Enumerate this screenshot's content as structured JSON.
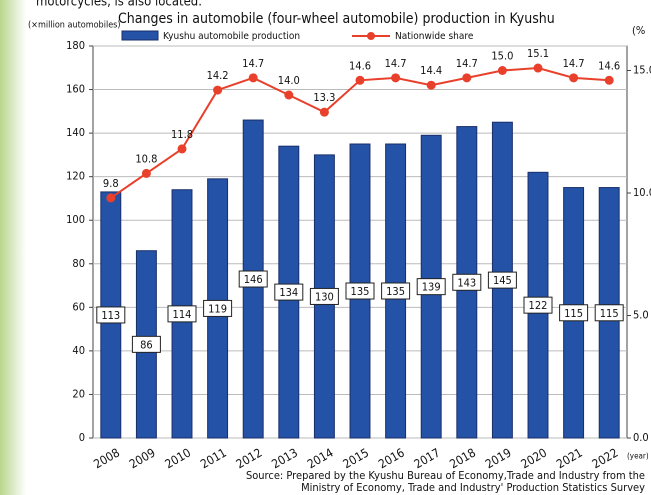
{
  "context_text": "motorcycles, is also located.",
  "chart_data": {
    "type": "bar_line",
    "title": "Changes in automobile (four-wheel automobile) production in Kyushu",
    "y_label": "(×million automobiles)",
    "y2_label": "(%",
    "x_label": "(year)",
    "source": [
      "Source: Prepared by the Kyushu Bureau of Economy,Trade and Industry from the",
      "Ministry of Economy, Trade and Industry' Production Statistics Survey"
    ],
    "categories": [
      "2008",
      "2009",
      "2010",
      "2011",
      "2012",
      "2013",
      "2014",
      "2015",
      "2016",
      "2017",
      "2018",
      "2019",
      "2020",
      "2021",
      "2022"
    ],
    "series": [
      {
        "name": "Kyushu automobile production",
        "color": "#2452a6",
        "type": "bar",
        "values": [
          113,
          86,
          114,
          119,
          146,
          134,
          130,
          135,
          135,
          139,
          143,
          145,
          122,
          115,
          115
        ]
      },
      {
        "name": "Nationwide share",
        "color": "#e8402b",
        "type": "line",
        "axis": "y2",
        "values": [
          9.8,
          10.8,
          11.8,
          14.2,
          14.7,
          14.0,
          13.3,
          14.6,
          14.7,
          14.4,
          14.7,
          15.0,
          15.1,
          14.7,
          14.6
        ],
        "value_labels": [
          "9.8",
          "10.8",
          "11.8",
          "14.2",
          "14.7",
          "14.0",
          "13.3",
          "14.6",
          "14.7",
          "14.4",
          "14.7",
          "15.0",
          "15.1",
          "14.7",
          "14.6"
        ]
      }
    ],
    "ylim": [
      0,
      180
    ],
    "yticks": [
      0,
      20,
      40,
      60,
      80,
      100,
      120,
      140,
      160,
      180
    ],
    "y2lim": [
      0,
      16
    ],
    "y2ticks": [
      {
        "value": 0,
        "label": "0.0"
      },
      {
        "value": 5,
        "label": "5.0"
      },
      {
        "value": 10,
        "label": "10.0"
      },
      {
        "value": 15,
        "label": "15.0"
      }
    ],
    "grid": true
  }
}
